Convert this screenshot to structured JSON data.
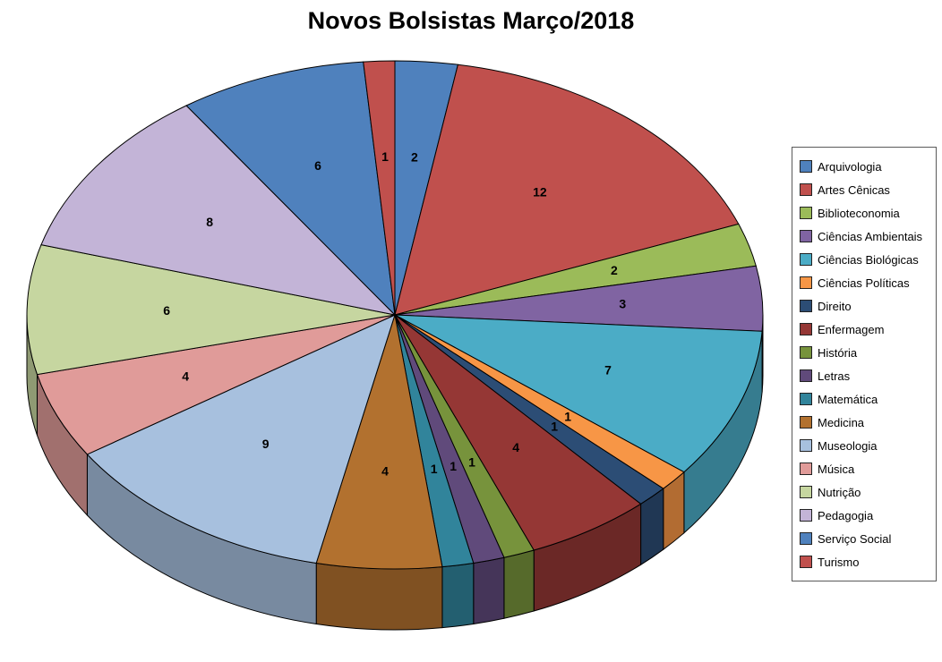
{
  "chart_data": {
    "type": "pie",
    "title": "Novos Bolsistas Março/2018",
    "effect_3d": true,
    "start_angle_deg": 0,
    "direction": "clockwise",
    "data_labels": "value",
    "legend_position": "right",
    "categories": [
      "Arquivologia",
      "Artes Cênicas",
      "Biblioteconomia",
      "Ciências Ambientais",
      "Ciências Biológicas",
      "Ciências Políticas",
      "Direito",
      "Enfermagem",
      "História",
      "Letras",
      "Matemática",
      "Medicina",
      "Museologia",
      "Música",
      "Nutrição",
      "Pedagogia",
      "Serviço Social",
      "Turismo"
    ],
    "values": [
      2,
      12,
      2,
      3,
      7,
      1,
      1,
      4,
      1,
      1,
      1,
      4,
      9,
      4,
      6,
      8,
      6,
      1
    ],
    "colors": [
      "#4F81BD",
      "#C0504D",
      "#9BBB59",
      "#8064A2",
      "#4BACC6",
      "#F79646",
      "#2C4D75",
      "#953735",
      "#77933C",
      "#604A7B",
      "#31849B",
      "#B2712F",
      "#A7C0DE",
      "#E09B99",
      "#C6D6A0",
      "#C3B4D7",
      "#4F81BD",
      "#C0504D"
    ]
  }
}
